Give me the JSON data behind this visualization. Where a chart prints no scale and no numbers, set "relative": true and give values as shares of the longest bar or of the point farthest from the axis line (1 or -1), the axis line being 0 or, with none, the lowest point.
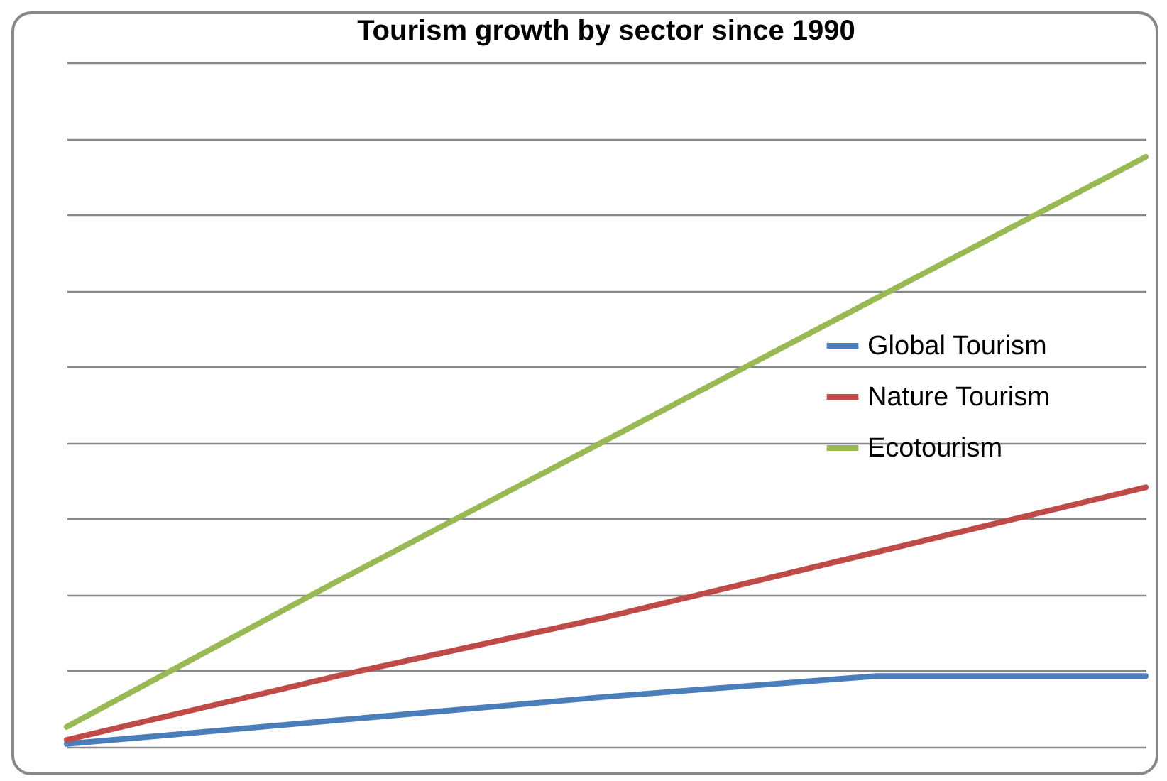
{
  "chart_data": {
    "type": "line",
    "title": "Tourism growth by sector since 1990",
    "relative": true,
    "categories": [
      null,
      null,
      null,
      null,
      null
    ],
    "series": [
      {
        "name": "Global Tourism",
        "color": "#4a7ebb",
        "values": [
          0.005,
          0.045,
          0.085,
          0.12,
          0.12
        ]
      },
      {
        "name": "Nature Tourism",
        "color": "#be4b48",
        "values": [
          0.012,
          0.12,
          0.22,
          0.33,
          0.44
        ]
      },
      {
        "name": "Ecotourism",
        "color": "#98b954",
        "values": [
          0.034,
          0.28,
          0.52,
          0.76,
          1
        ]
      }
    ],
    "grid": "y",
    "legend": "right",
    "marker": "none",
    "line_style": "solid"
  }
}
